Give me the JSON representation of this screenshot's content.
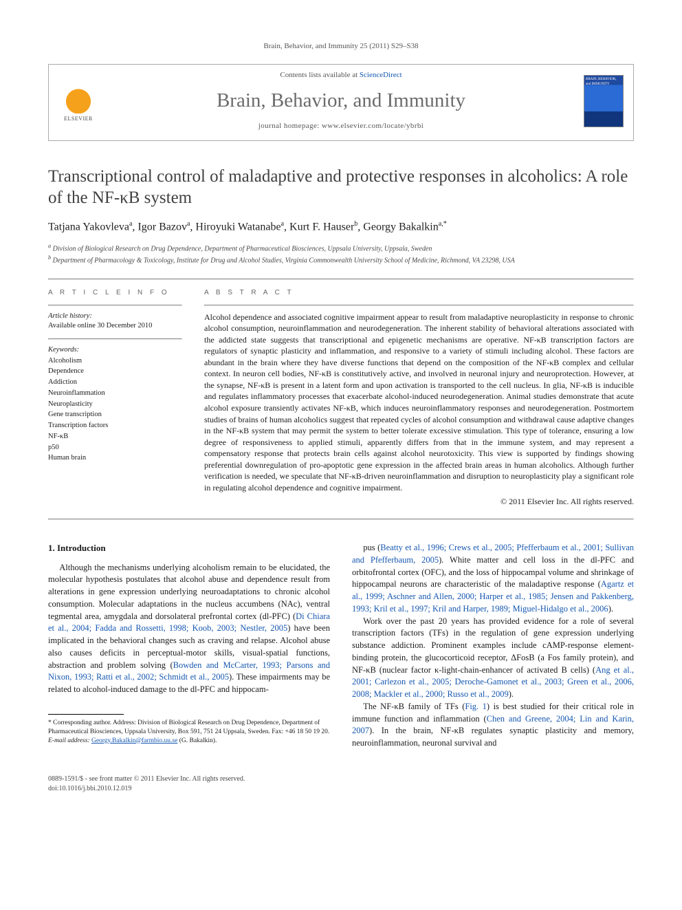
{
  "running_head": "Brain, Behavior, and Immunity 25 (2011) S29–S38",
  "header": {
    "contents_prefix": "Contents lists available at ",
    "contents_link": "ScienceDirect",
    "journal_name": "Brain, Behavior, and Immunity",
    "homepage_prefix": "journal homepage: ",
    "homepage_url": "www.elsevier.com/locate/ybrbi",
    "publisher_label": "ELSEVIER",
    "cover_text": "BRAIN, BEHAVIOR, and IMMUNITY"
  },
  "title": "Transcriptional control of maladaptive and protective responses in alcoholics: A role of the NF-κB system",
  "authors_html": "Tatjana Yakovleva<sup>a</sup>, Igor Bazov<sup>a</sup>, Hiroyuki Watanabe<sup>a</sup>, Kurt F. Hauser<sup>b</sup>, Georgy Bakalkin<sup>a,*</sup>",
  "affiliations": {
    "a": "Division of Biological Research on Drug Dependence, Department of Pharmaceutical Biosciences, Uppsala University, Uppsala, Sweden",
    "b": "Department of Pharmacology & Toxicology, Institute for Drug and Alcohol Studies, Virginia Commonwealth University School of Medicine, Richmond, VA 23298, USA"
  },
  "article_info": {
    "heading": "A R T I C L E   I N F O",
    "history_label": "Article history:",
    "history_line": "Available online 30 December 2010",
    "keywords_label": "Keywords:",
    "keywords": [
      "Alcoholism",
      "Dependence",
      "Addiction",
      "Neuroinflammation",
      "Neuroplasticity",
      "Gene transcription",
      "Transcription factors",
      "NF-κB",
      "p50",
      "Human brain"
    ]
  },
  "abstract": {
    "heading": "A B S T R A C T",
    "text": "Alcohol dependence and associated cognitive impairment appear to result from maladaptive neuroplasticity in response to chronic alcohol consumption, neuroinflammation and neurodegeneration. The inherent stability of behavioral alterations associated with the addicted state suggests that transcriptional and epigenetic mechanisms are operative. NF-κB transcription factors are regulators of synaptic plasticity and inflammation, and responsive to a variety of stimuli including alcohol. These factors are abundant in the brain where they have diverse functions that depend on the composition of the NF-κB complex and cellular context. In neuron cell bodies, NF-κB is constitutively active, and involved in neuronal injury and neuroprotection. However, at the synapse, NF-κB is present in a latent form and upon activation is transported to the cell nucleus. In glia, NF-κB is inducible and regulates inflammatory processes that exacerbate alcohol-induced neurodegeneration. Animal studies demonstrate that acute alcohol exposure transiently activates NF-κB, which induces neuroinflammatory responses and neurodegeneration. Postmortem studies of brains of human alcoholics suggest that repeated cycles of alcohol consumption and withdrawal cause adaptive changes in the NF-κB system that may permit the system to better tolerate excessive stimulation. This type of tolerance, ensuring a low degree of responsiveness to applied stimuli, apparently differs from that in the immune system, and may represent a compensatory response that protects brain cells against alcohol neurotoxicity. This view is supported by findings showing preferential downregulation of pro-apoptotic gene expression in the affected brain areas in human alcoholics. Although further verification is needed, we speculate that NF-κB-driven neuroinflammation and disruption to neuroplasticity play a significant role in regulating alcohol dependence and cognitive impairment.",
    "copyright": "© 2011 Elsevier Inc. All rights reserved."
  },
  "section1": {
    "heading": "1. Introduction",
    "left": "Although the mechanisms underlying alcoholism remain to be elucidated, the molecular hypothesis postulates that alcohol abuse and dependence result from alterations in gene expression underlying neuroadaptations to chronic alcohol consumption. Molecular adaptations in the nucleus accumbens (NAc), ventral tegmental area, amygdala and dorsolateral prefrontal cortex (dl-PFC) (Di Chiara et al., 2004; Fadda and Rossetti, 1998; Koob, 2003; Nestler, 2005) have been implicated in the behavioral changes such as craving and relapse. Alcohol abuse also causes deficits in perceptual-motor skills, visual-spatial functions, abstraction and problem solving (Bowden and McCarter, 1993; Parsons and Nixon, 1993; Ratti et al., 2002; Schmidt et al., 2005). These impairments may be related to alcohol-induced damage to the dl-PFC and hippocam-",
    "right_p1": "pus (Beatty et al., 1996; Crews et al., 2005; Pfefferbaum et al., 2001; Sullivan and Pfefferbaum, 2005). White matter and cell loss in the dl-PFC and orbitofrontal cortex (OFC), and the loss of hippocampal volume and shrinkage of hippocampal neurons are characteristic of the maladaptive response (Agartz et al., 1999; Aschner and Allen, 2000; Harper et al., 1985; Jensen and Pakkenberg, 1993; Kril et al., 1997; Kril and Harper, 1989; Miguel-Hidalgo et al., 2006).",
    "right_p2": "Work over the past 20 years has provided evidence for a role of several transcription factors (TFs) in the regulation of gene expression underlying substance addiction. Prominent examples include cAMP-response element-binding protein, the glucocorticoid receptor, ΔFosB (a Fos family protein), and NF-κB (nuclear factor κ-light-chain-enhancer of activated B cells) (Ang et al., 2001; Carlezon et al., 2005; Deroche-Gamonet et al., 2003; Green et al., 2006, 2008; Mackler et al., 2000; Russo et al., 2009).",
    "right_p3": "The NF-κB family of TFs (Fig. 1) is best studied for their critical role in immune function and inflammation (Chen and Greene, 2004; Lin and Karin, 2007). In the brain, NF-κB regulates synaptic plasticity and memory, neuroinflammation, neuronal survival and"
  },
  "footnotes": {
    "corresponding": "* Corresponding author. Address: Division of Biological Research on Drug Dependence, Department of Pharmaceutical Biosciences, Uppsala University, Box 591, 751 24 Uppsala, Sweden. Fax: +46 18 50 19 20.",
    "email_label": "E-mail address:",
    "email": "Georgy.Bakalkin@farmbio.uu.se",
    "email_suffix": " (G. Bakalkin)."
  },
  "footer": {
    "left_l1": "0889-1591/$ - see front matter © 2011 Elsevier Inc. All rights reserved.",
    "left_l2": "doi:10.1016/j.bbi.2010.12.019"
  },
  "colors": {
    "link": "#1557b0",
    "text": "#1a1a1a",
    "muted": "#555555",
    "rule": "#888888",
    "elsevier_orange": "#f6a11b",
    "cover_blue": "#1f4aa0"
  }
}
